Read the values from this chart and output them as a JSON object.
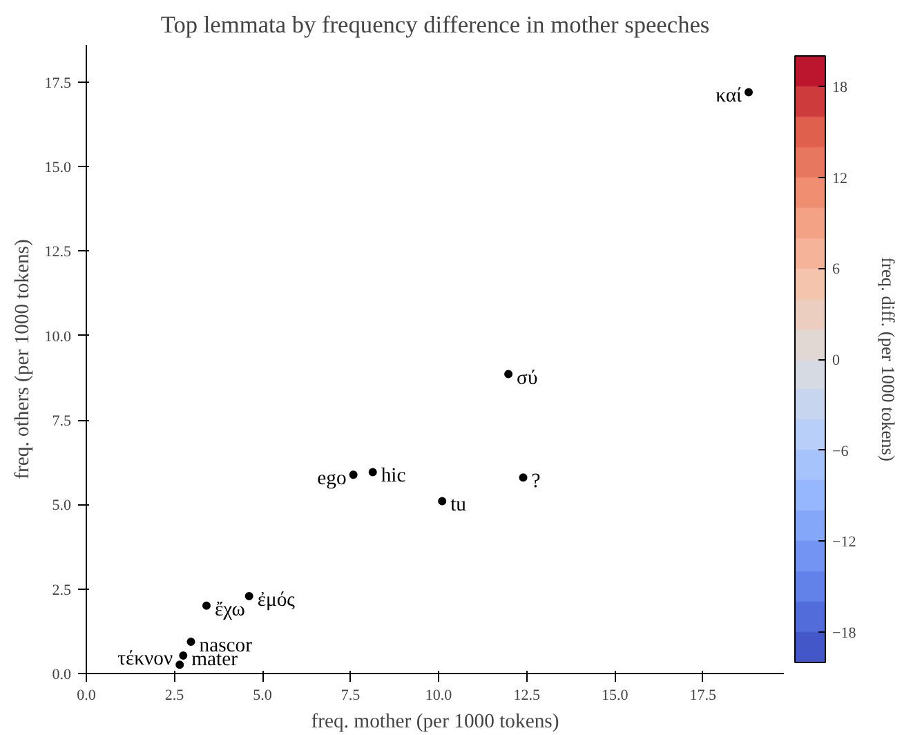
{
  "chart_data": {
    "type": "scatter",
    "title": "Top lemmata by frequency difference in mother speeches",
    "xlabel": "freq. mother (per 1000 tokens)",
    "ylabel": "freq. others (per 1000 tokens)",
    "clabel": "freq. diff. (per 1000 tokens)",
    "x": [
      18.8,
      11.98,
      7.58,
      8.13,
      10.1,
      12.4,
      3.41,
      4.62,
      2.97,
      2.75,
      2.65
    ],
    "values": [
      17.2,
      8.86,
      5.88,
      5.96,
      5.1,
      5.8,
      2.01,
      2.29,
      0.94,
      0.53,
      0.26
    ],
    "color": "#000000",
    "marker": "circle",
    "annotations": [
      {
        "text": "καί",
        "x": 18.8,
        "y": 17.2
      },
      {
        "text": "σύ",
        "x": 11.98,
        "y": 8.86
      },
      {
        "text": "ego",
        "x": 7.58,
        "y": 5.88
      },
      {
        "text": "hic",
        "x": 8.13,
        "y": 5.96
      },
      {
        "text": "tu",
        "x": 10.1,
        "y": 5.1
      },
      {
        "text": "?",
        "x": 12.4,
        "y": 5.8
      },
      {
        "text": "ἔχω",
        "x": 3.41,
        "y": 2.01
      },
      {
        "text": "ἐμός",
        "x": 4.62,
        "y": 2.29
      },
      {
        "text": "nascor",
        "x": 2.97,
        "y": 0.94
      },
      {
        "text": "mater",
        "x": 2.75,
        "y": 0.53
      },
      {
        "text": "τέκνον",
        "x": 2.65,
        "y": 0.26
      }
    ],
    "xlim": [
      0,
      19.8
    ],
    "ylim": [
      0,
      18.6
    ],
    "xticks": [
      {
        "value": 0,
        "label": "0.0"
      },
      {
        "value": 2.5,
        "label": "2.5"
      },
      {
        "value": 5,
        "label": "5.0"
      },
      {
        "value": 7.5,
        "label": "7.5"
      },
      {
        "value": 10,
        "label": "10.0"
      },
      {
        "value": 12.5,
        "label": "12.5"
      },
      {
        "value": 15,
        "label": "15.0"
      },
      {
        "value": 17.5,
        "label": "17.5"
      }
    ],
    "yticks": [
      {
        "value": 0,
        "label": "0.0"
      },
      {
        "value": 2.5,
        "label": "2.5"
      },
      {
        "value": 5,
        "label": "5.0"
      },
      {
        "value": 7.5,
        "label": "7.5"
      },
      {
        "value": 10,
        "label": "10.0"
      },
      {
        "value": 12.5,
        "label": "12.5"
      },
      {
        "value": 15,
        "label": "15.0"
      },
      {
        "value": 17.5,
        "label": "17.5"
      }
    ],
    "clim": [
      -20,
      20
    ],
    "cticks": [
      -18,
      -12,
      -6,
      0,
      6,
      12,
      18
    ],
    "grid": false
  }
}
